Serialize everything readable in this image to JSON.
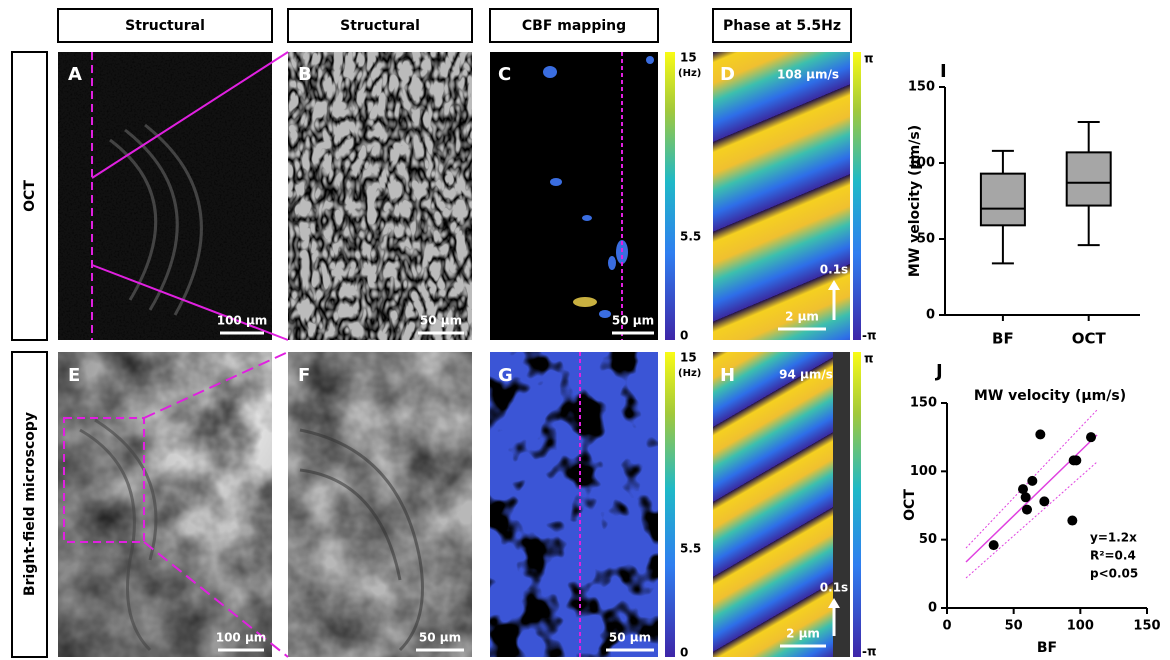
{
  "panels": {
    "headers": [
      "Structural",
      "Structural",
      "CBF mapping",
      "Phase at 5.5Hz"
    ],
    "rows": [
      "OCT",
      "Bright-field microscopy"
    ],
    "letters": [
      "A",
      "B",
      "C",
      "D",
      "E",
      "F",
      "G",
      "H"
    ],
    "scalebars": {
      "a": "100 µm",
      "b": "50 µm",
      "c": "50 µm",
      "d": "2 µm",
      "d_time": "0.1s",
      "d_velocity": "108 µm/s",
      "e": "100 µm",
      "f": "50 µm",
      "g": "50 µm",
      "h": "2 µm",
      "h_time": "0.1s",
      "h_velocity": "94 µm/s"
    },
    "cbf_colorbar": [
      "15",
      "(Hz)",
      "5.5",
      "0"
    ],
    "phase_colorbar": [
      "π",
      "-π"
    ]
  },
  "chart_data": [
    {
      "type": "box",
      "panel": "I",
      "ylabel": "MW velocity (µm/s)",
      "categories": [
        "BF",
        "OCT"
      ],
      "min": [
        34,
        46
      ],
      "q1": [
        59,
        72
      ],
      "median": [
        70,
        87
      ],
      "q3": [
        93,
        107
      ],
      "max": [
        108,
        127
      ],
      "color": "#a6a6a6",
      "ylim": [
        0,
        150
      ],
      "yticks": [
        0,
        50,
        100,
        150
      ]
    },
    {
      "type": "scatter",
      "panel": "J",
      "title": "MW velocity (µm/s)",
      "xlabel": "BF",
      "ylabel": "OCT",
      "x": [
        35,
        57,
        59,
        60,
        64,
        70,
        73,
        94,
        95,
        97,
        108
      ],
      "values": [
        46,
        87,
        81,
        72,
        93,
        127,
        78,
        64,
        108,
        108,
        125
      ],
      "color": "#000000",
      "fit_color": "#e040e0",
      "annotations": [
        "y=1.2x",
        "R²=0.4",
        "p<0.05"
      ],
      "xlim": [
        0,
        150
      ],
      "xticks": [
        0,
        50,
        100,
        150
      ],
      "ylim": [
        0,
        150
      ],
      "yticks": [
        0,
        50,
        100,
        150
      ]
    }
  ]
}
